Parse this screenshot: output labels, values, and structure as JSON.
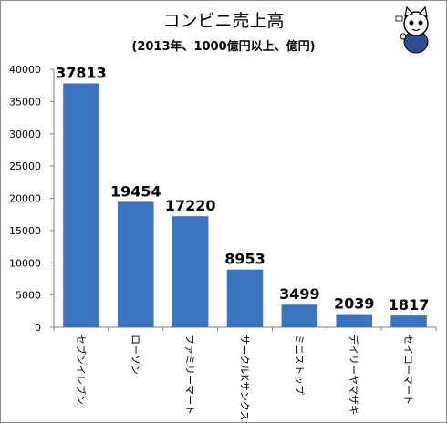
{
  "chart_data": {
    "type": "bar",
    "title": "コンビニ売上高",
    "subtitle": "(2013年、1000億円以上、億円)",
    "categories": [
      "セブンイレブン",
      "ローソン",
      "ファミリーマート",
      "サークルKサンクス",
      "ミニストップ",
      "デイリーヤマザキ",
      "セイコーマート"
    ],
    "values": [
      37813,
      19454,
      17220,
      8953,
      3499,
      2039,
      1817
    ],
    "ylim": [
      0,
      40000
    ],
    "yticks": [
      0,
      5000,
      10000,
      15000,
      20000,
      25000,
      30000,
      35000,
      40000
    ],
    "grid": false,
    "legend": "none",
    "colors": {
      "bar": "#3a73bf",
      "axis": "#808080",
      "text": "#000000"
    }
  },
  "mascot": {
    "icon": "cat-mascot-icon"
  }
}
